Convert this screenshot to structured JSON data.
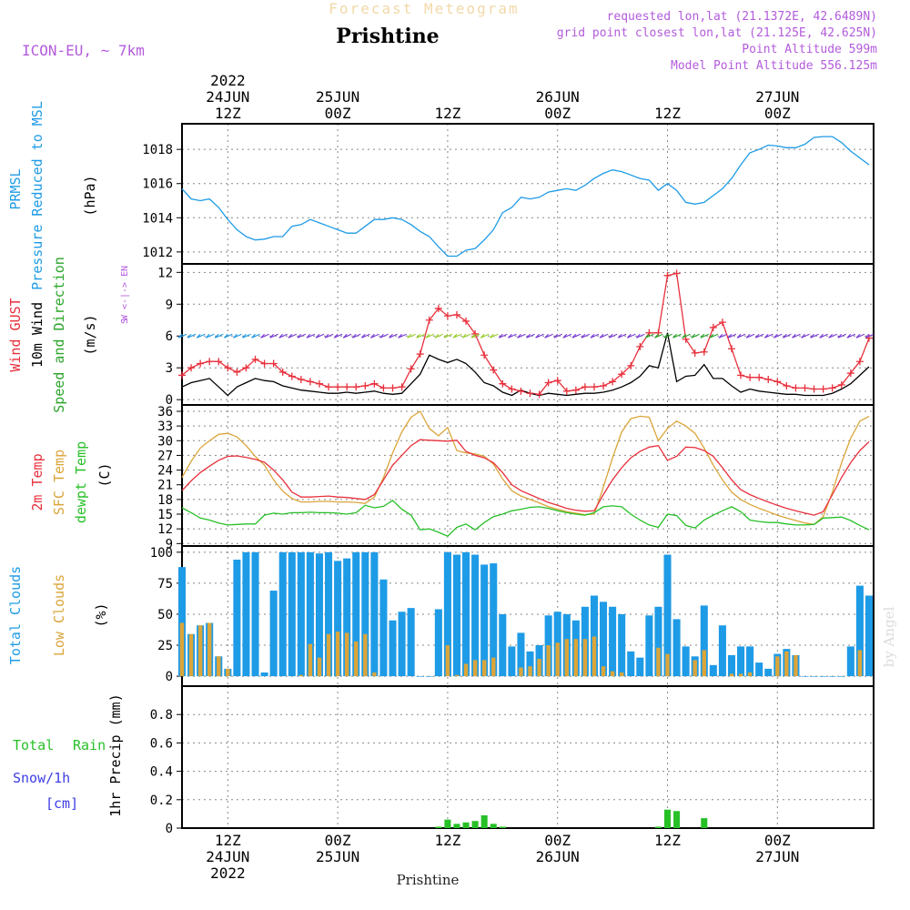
{
  "header": {
    "product": "Forecast Meteogram",
    "location": "Prishtine",
    "model": "ICON-EU, ~ 7km",
    "requested": "requested lon,lat (21.1372E, 42.6489N)",
    "gridpoint": "grid point closest lon,lat (21.125E, 42.625N)",
    "point_alt": "Point Altitude 599m",
    "model_alt": "Model Point Altitude 556.125m",
    "footer": "Prishtine",
    "watermark": "by Angel"
  },
  "colors": {
    "pressure": "#1e9be6",
    "gust": "#e8303c",
    "wind": "#000000",
    "arrows": "#2aa52a",
    "temp2m": "#e8303c",
    "sfc": "#dba53a",
    "dewpt": "#27c027",
    "clouds_total": "#1e9be6",
    "clouds_low": "#dba53a",
    "rain": "#27c027",
    "snow": "#3d3de6",
    "purple": "#b35bdc"
  },
  "time_axis": {
    "top": [
      {
        "h": 12,
        "lines": [
          "2022",
          "24JUN",
          "12Z"
        ]
      },
      {
        "h": 24,
        "lines": [
          "25JUN",
          "00Z"
        ]
      },
      {
        "h": 36,
        "lines": [
          "12Z"
        ]
      },
      {
        "h": 48,
        "lines": [
          "26JUN",
          "00Z"
        ]
      },
      {
        "h": 60,
        "lines": [
          "12Z"
        ]
      },
      {
        "h": 72,
        "lines": [
          "27JUN",
          "00Z"
        ]
      }
    ],
    "bottom": [
      {
        "h": 12,
        "lines": [
          "12Z",
          "24JUN",
          "2022"
        ]
      },
      {
        "h": 24,
        "lines": [
          "00Z",
          "25JUN"
        ]
      },
      {
        "h": 36,
        "lines": [
          "12Z"
        ]
      },
      {
        "h": 48,
        "lines": [
          "00Z",
          "26JUN"
        ]
      },
      {
        "h": 60,
        "lines": [
          "12Z"
        ]
      },
      {
        "h": 72,
        "lines": [
          "00Z",
          "27JUN"
        ]
      }
    ]
  },
  "panel_labels": {
    "pressure": [
      "PRMSL",
      "Pressure Reduced to MSL",
      "(hPa)"
    ],
    "wind": [
      "Wind GUST",
      "10m Wind",
      "Speed and Direction",
      "(m/s)"
    ],
    "compass": [
      "N",
      "W <-|-> E",
      "S"
    ],
    "temp": [
      "2m Temp",
      "SFC Temp",
      "dewpt Temp",
      "(C)"
    ],
    "clouds": [
      "Total Clouds",
      "Low Clouds",
      "(%)"
    ],
    "precip": [
      "Total",
      "Rain",
      "Snow/1h",
      "[cm]",
      "1hr Precip (mm)"
    ]
  },
  "chart_data": [
    {
      "type": "line",
      "title": "PRMSL Pressure Reduced to MSL",
      "ylabel": "(hPa)",
      "ylim": [
        1011.3,
        1019.5
      ],
      "yticks": [
        1012,
        1014,
        1016,
        1018
      ],
      "x_hours": [
        7,
        8,
        9,
        10,
        11,
        12,
        13,
        14,
        15,
        16,
        17,
        18,
        19,
        20,
        21,
        22,
        23,
        24,
        25,
        26,
        27,
        28,
        29,
        30,
        31,
        32,
        33,
        34,
        35,
        36,
        37,
        38,
        39,
        40,
        41,
        42,
        43,
        44,
        45,
        46,
        47,
        48,
        49,
        50,
        51,
        52,
        53,
        54,
        55,
        56,
        57,
        58,
        59,
        60,
        61,
        62,
        63,
        64,
        65,
        66,
        67,
        68,
        69,
        70,
        71,
        72,
        73,
        74,
        75,
        76,
        77,
        78,
        79,
        80,
        81,
        82
      ],
      "series": [
        {
          "name": "PRMSL",
          "values": [
            1015.7,
            1015.1,
            1015.0,
            1015.1,
            1014.6,
            1013.9,
            1013.3,
            1012.9,
            1012.7,
            1012.75,
            1012.9,
            1012.9,
            1013.5,
            1013.6,
            1013.9,
            1013.7,
            1013.5,
            1013.3,
            1013.1,
            1013.1,
            1013.5,
            1013.9,
            1013.9,
            1014.0,
            1013.9,
            1013.6,
            1013.2,
            1012.9,
            1012.3,
            1011.75,
            1011.75,
            1012.1,
            1012.2,
            1012.7,
            1013.3,
            1014.3,
            1014.6,
            1015.2,
            1015.1,
            1015.2,
            1015.5,
            1015.6,
            1015.7,
            1015.6,
            1015.9,
            1016.3,
            1016.6,
            1016.8,
            1016.7,
            1016.5,
            1016.3,
            1016.2,
            1015.6,
            1016.0,
            1015.6,
            1014.9,
            1014.8,
            1014.9,
            1015.3,
            1015.7,
            1016.3,
            1017.1,
            1017.8,
            1018.0,
            1018.25,
            1018.2,
            1018.1,
            1018.1,
            1018.3,
            1018.7,
            1018.75,
            1018.75,
            1018.4,
            1017.9,
            1017.5,
            1017.1
          ]
        }
      ]
    },
    {
      "type": "line",
      "title": "Wind GUST / 10m Wind Speed and Direction",
      "ylabel": "(m/s)",
      "ylim": [
        -0.5,
        12.8
      ],
      "yticks": [
        0,
        3,
        6,
        9,
        12
      ],
      "x_hours": [
        7,
        8,
        9,
        10,
        11,
        12,
        13,
        14,
        15,
        16,
        17,
        18,
        19,
        20,
        21,
        22,
        23,
        24,
        25,
        26,
        27,
        28,
        29,
        30,
        31,
        32,
        33,
        34,
        35,
        36,
        37,
        38,
        39,
        40,
        41,
        42,
        43,
        44,
        45,
        46,
        47,
        48,
        49,
        50,
        51,
        52,
        53,
        54,
        55,
        56,
        57,
        58,
        59,
        60,
        61,
        62,
        63,
        64,
        65,
        66,
        67,
        68,
        69,
        70,
        71,
        72,
        73,
        74,
        75,
        76,
        77,
        78,
        79,
        80,
        81,
        82
      ],
      "series": [
        {
          "name": "Wind GUST",
          "values": [
            2.3,
            3.0,
            3.4,
            3.6,
            3.6,
            3.0,
            2.6,
            3.0,
            3.8,
            3.4,
            3.4,
            2.6,
            2.2,
            1.9,
            1.7,
            1.5,
            1.2,
            1.2,
            1.2,
            1.2,
            1.3,
            1.5,
            1.1,
            1.1,
            1.2,
            2.9,
            4.3,
            7.5,
            8.6,
            7.9,
            8.0,
            7.4,
            6.2,
            4.2,
            2.8,
            1.5,
            1.0,
            0.8,
            0.6,
            0.5,
            1.6,
            1.8,
            0.8,
            0.9,
            1.2,
            1.2,
            1.3,
            1.7,
            2.4,
            3.2,
            5.0,
            6.3,
            6.3,
            11.7,
            11.9,
            5.7,
            4.4,
            4.5,
            6.8,
            7.3,
            4.8,
            2.3,
            2.1,
            2.1,
            1.9,
            1.7,
            1.3,
            1.1,
            1.1,
            1.0,
            1.0,
            1.1,
            1.4,
            2.5,
            3.6,
            5.8
          ]
        },
        {
          "name": "10m Wind",
          "values": [
            1.2,
            1.6,
            1.8,
            2.0,
            1.2,
            0.4,
            1.2,
            1.6,
            2.0,
            1.8,
            1.7,
            1.3,
            1.1,
            0.9,
            0.8,
            0.7,
            0.6,
            0.6,
            0.7,
            0.6,
            0.7,
            0.8,
            0.6,
            0.5,
            0.6,
            1.5,
            2.4,
            4.2,
            3.8,
            3.5,
            3.8,
            3.4,
            2.6,
            1.6,
            1.3,
            0.7,
            0.4,
            0.9,
            0.6,
            0.4,
            0.6,
            0.5,
            0.4,
            0.5,
            0.6,
            0.6,
            0.7,
            0.9,
            1.2,
            1.6,
            2.2,
            3.2,
            3.0,
            6.3,
            1.7,
            2.2,
            2.3,
            3.3,
            2.0,
            2.0,
            1.3,
            0.7,
            1.0,
            0.8,
            0.7,
            0.6,
            0.5,
            0.5,
            0.4,
            0.4,
            0.4,
            0.6,
            1.0,
            1.5,
            2.3,
            3.1
          ]
        }
      ]
    },
    {
      "type": "line",
      "title": "2m Temp / SFC Temp / dewpt Temp",
      "ylabel": "(C)",
      "ylim": [
        8.5,
        37.3
      ],
      "yticks": [
        9,
        12,
        15,
        18,
        21,
        24,
        27,
        30,
        33,
        36
      ],
      "x_hours": [
        7,
        8,
        9,
        10,
        11,
        12,
        13,
        14,
        15,
        16,
        17,
        18,
        19,
        20,
        21,
        22,
        23,
        24,
        25,
        26,
        27,
        28,
        29,
        30,
        31,
        32,
        33,
        34,
        35,
        36,
        37,
        38,
        39,
        40,
        41,
        42,
        43,
        44,
        45,
        46,
        47,
        48,
        49,
        50,
        51,
        52,
        53,
        54,
        55,
        56,
        57,
        58,
        59,
        60,
        61,
        62,
        63,
        64,
        65,
        66,
        67,
        68,
        69,
        70,
        71,
        72,
        73,
        74,
        75,
        76,
        77,
        78,
        79,
        80,
        81,
        82
      ],
      "series": [
        {
          "name": "2m Temp",
          "values": [
            19.8,
            21.8,
            23.5,
            24.8,
            26.0,
            26.8,
            26.9,
            26.6,
            26.2,
            25.6,
            24.0,
            22.0,
            19.5,
            18.5,
            18.5,
            18.6,
            18.7,
            18.5,
            18.4,
            18.2,
            18.0,
            19.0,
            22.0,
            25.0,
            27.0,
            29.0,
            30.2,
            30.1,
            30.0,
            29.9,
            30.1,
            27.8,
            27.0,
            26.5,
            25.5,
            23.5,
            21.0,
            19.8,
            19.0,
            18.2,
            17.4,
            16.8,
            16.2,
            15.8,
            15.6,
            15.7,
            19.0,
            22.0,
            24.5,
            26.5,
            27.8,
            28.7,
            29.0,
            26.0,
            26.8,
            28.7,
            28.6,
            28.0,
            26.8,
            24.5,
            22.0,
            20.0,
            19.0,
            18.2,
            17.5,
            16.8,
            16.2,
            15.7,
            15.2,
            14.8,
            15.5,
            19.0,
            22.5,
            25.5,
            28.0,
            29.8
          ]
        },
        {
          "name": "SFC Temp",
          "values": [
            22.5,
            25.8,
            28.5,
            30.0,
            31.3,
            31.5,
            30.8,
            29.0,
            26.8,
            25.0,
            22.0,
            19.7,
            18.2,
            17.5,
            17.5,
            17.6,
            17.6,
            17.5,
            17.5,
            17.4,
            17.2,
            18.5,
            22.5,
            27.5,
            31.8,
            34.8,
            36.0,
            32.5,
            31.0,
            32.7,
            28.0,
            27.5,
            27.3,
            26.8,
            25.2,
            22.2,
            19.8,
            18.7,
            18.0,
            17.3,
            16.5,
            16.0,
            15.5,
            15.2,
            14.9,
            15.0,
            20.5,
            26.5,
            31.8,
            34.5,
            35.0,
            34.8,
            30.0,
            32.5,
            34.0,
            33.0,
            31.5,
            28.5,
            25.0,
            22.0,
            19.5,
            18.0,
            17.0,
            16.2,
            15.5,
            14.8,
            14.2,
            13.7,
            13.2,
            12.9,
            14.5,
            19.5,
            25.5,
            30.5,
            34.0,
            35.0
          ]
        },
        {
          "name": "dewpt Temp",
          "values": [
            16.3,
            15.3,
            14.2,
            13.8,
            13.2,
            12.8,
            12.9,
            13.0,
            13.0,
            14.8,
            15.2,
            15.0,
            15.3,
            15.3,
            15.4,
            15.3,
            15.3,
            15.2,
            15.0,
            15.3,
            16.8,
            16.3,
            16.6,
            17.8,
            16.0,
            14.8,
            11.8,
            12.0,
            11.3,
            10.5,
            12.3,
            13.0,
            11.8,
            13.3,
            14.5,
            15.0,
            15.7,
            16.0,
            16.4,
            16.5,
            16.2,
            15.7,
            15.3,
            15.0,
            14.8,
            15.3,
            16.5,
            16.7,
            16.5,
            15.0,
            13.8,
            12.8,
            12.3,
            15.0,
            14.7,
            12.7,
            12.2,
            13.8,
            14.8,
            15.7,
            16.5,
            15.5,
            13.8,
            13.5,
            13.3,
            13.3,
            13.0,
            12.8,
            12.8,
            12.9,
            14.2,
            14.3,
            14.4,
            13.7,
            12.7,
            11.8
          ]
        }
      ]
    },
    {
      "type": "bar",
      "title": "Total Clouds / Low Clouds",
      "ylabel": "(%)",
      "ylim": [
        -8,
        105
      ],
      "yticks": [
        0,
        25,
        50,
        75,
        100
      ],
      "x_hours": [
        7,
        8,
        9,
        10,
        11,
        12,
        13,
        14,
        15,
        16,
        17,
        18,
        19,
        20,
        21,
        22,
        23,
        24,
        25,
        26,
        27,
        28,
        29,
        30,
        31,
        32,
        33,
        34,
        35,
        36,
        37,
        38,
        39,
        40,
        41,
        42,
        43,
        44,
        45,
        46,
        47,
        48,
        49,
        50,
        51,
        52,
        53,
        54,
        55,
        56,
        57,
        58,
        59,
        60,
        61,
        62,
        63,
        64,
        65,
        66,
        67,
        68,
        69,
        70,
        71,
        72,
        73,
        74,
        75,
        76,
        77,
        78,
        79,
        80,
        81,
        82
      ],
      "series": [
        {
          "name": "Total Clouds",
          "values": [
            88,
            34,
            41,
            43,
            16,
            6,
            94,
            100,
            100,
            3,
            69,
            100,
            100,
            100,
            100,
            99,
            100,
            93,
            95,
            100,
            100,
            100,
            78,
            45,
            52,
            55,
            0,
            0,
            54,
            100,
            98,
            100,
            98,
            90,
            91,
            50,
            24,
            35,
            20,
            25,
            49,
            52,
            50,
            45,
            56,
            65,
            60,
            56,
            50,
            20,
            15,
            49,
            56,
            98,
            46,
            24,
            16,
            57,
            9,
            41,
            17,
            24,
            24,
            11,
            6,
            18,
            22,
            17,
            0,
            0,
            0,
            0,
            0,
            24,
            73,
            65
          ]
        },
        {
          "name": "Low Clouds",
          "values": [
            43,
            34,
            41,
            43,
            16,
            6,
            0,
            0,
            0,
            0,
            0,
            0,
            0,
            1,
            26,
            15,
            34,
            36,
            35,
            28,
            34,
            3,
            0,
            0,
            0,
            0,
            0,
            0,
            0,
            25,
            1,
            10,
            13,
            13,
            15,
            0,
            0,
            7,
            8,
            14,
            25,
            27,
            30,
            30,
            30,
            32,
            8,
            4,
            3,
            0,
            0,
            0,
            23,
            18,
            0,
            0,
            13,
            21,
            0,
            0,
            2,
            2,
            3,
            0,
            0,
            16,
            20,
            17,
            0,
            0,
            0,
            0,
            0,
            0,
            21,
            0
          ]
        }
      ]
    },
    {
      "type": "bar",
      "title": "1hr Precip (mm)",
      "ylabel": "1hr Precip (mm)",
      "ylim": [
        0,
        1.0
      ],
      "yticks": [
        0,
        0.2,
        0.4,
        0.6,
        0.8
      ],
      "x_hours": [
        35,
        36,
        37,
        38,
        39,
        40,
        41,
        42,
        59,
        60,
        61,
        64
      ],
      "series": [
        {
          "name": "Total Rain",
          "values": [
            0.01,
            0.06,
            0.03,
            0.04,
            0.05,
            0.09,
            0.03,
            0.01,
            0.01,
            0.13,
            0.12,
            0.07
          ]
        }
      ]
    }
  ]
}
